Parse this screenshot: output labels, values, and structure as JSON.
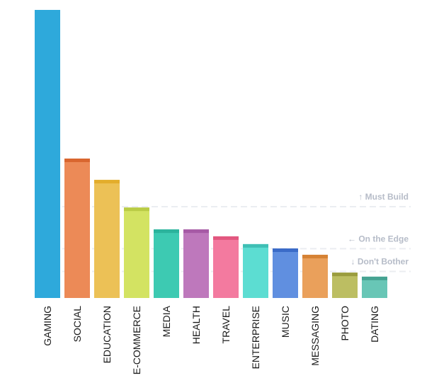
{
  "chart_data": {
    "type": "bar",
    "categories": [
      "GAMING",
      "SOCIAL",
      "EDUCATION",
      "E-COMMERCE",
      "MEDIA",
      "HEALTH",
      "TRAVEL",
      "ENTERPRISE",
      "MUSIC",
      "MESSAGING",
      "PHOTO",
      "DATING"
    ],
    "values": [
      100,
      48.4,
      41,
      31.4,
      23.8,
      23.8,
      21.4,
      18.7,
      17.2,
      15,
      8.8,
      7.4
    ],
    "ylim": [
      0,
      100
    ],
    "grid": false,
    "legend": "none",
    "colors": [
      "#2ea9db",
      "#ec8a57",
      "#ecc156",
      "#d3e362",
      "#3dcab2",
      "#be78bc",
      "#f37a9f",
      "#5cddd2",
      "#608fe0",
      "#eaa05b",
      "#bcbe62",
      "#68c6b6"
    ],
    "cap_colors": [
      "#2ea9db",
      "#d9662f",
      "#e3ad2c",
      "#b9cc45",
      "#2bb39c",
      "#a65aa5",
      "#e2577f",
      "#3fbfb5",
      "#3b6bc8",
      "#d68234",
      "#9a9c3e",
      "#46a392"
    ],
    "thresholds": [
      {
        "label": "Must Build",
        "value": 31.7,
        "arrow": "↑"
      },
      {
        "label": "On the Edge",
        "value": 17.1,
        "arrow": "←"
      },
      {
        "label": "Don't Bother",
        "value": 9.2,
        "arrow": "↓"
      }
    ]
  }
}
